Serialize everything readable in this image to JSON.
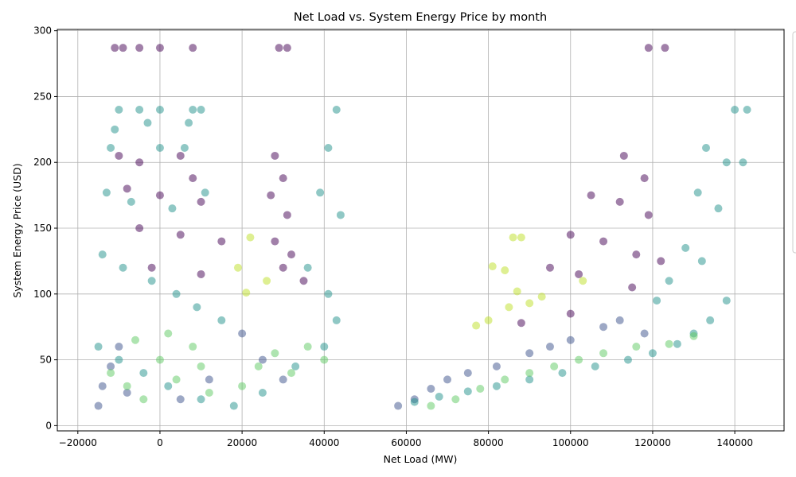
{
  "chart_data": {
    "type": "scatter",
    "title": "Net Load vs. System Energy Price by month",
    "xlabel": "Net Load (MW)",
    "ylabel": "System Energy Price (USD)",
    "xlim": [
      -25000,
      152000
    ],
    "ylim": [
      -4,
      301
    ],
    "x_ticks": [
      -20000,
      0,
      20000,
      40000,
      60000,
      80000,
      100000,
      120000,
      140000
    ],
    "x_tick_labels": [
      "−20000",
      "0",
      "20000",
      "40000",
      "60000",
      "80000",
      "100000",
      "120000",
      "140000"
    ],
    "y_ticks": [
      0,
      50,
      100,
      150,
      200,
      250,
      300
    ],
    "y_tick_labels": [
      "0",
      "50",
      "100",
      "150",
      "200",
      "250",
      "300"
    ],
    "grid": true,
    "legend_position": "right",
    "colormap": "viridis",
    "marker_alpha": 0.5,
    "series": [
      {
        "color": "#440154",
        "points": [
          [
            -11000,
            287
          ],
          [
            -9000,
            287
          ],
          [
            -5000,
            287
          ],
          [
            0,
            287
          ],
          [
            8000,
            287
          ],
          [
            29000,
            287
          ],
          [
            31000,
            287
          ],
          [
            119000,
            287
          ],
          [
            123000,
            287
          ],
          [
            -10000,
            205
          ],
          [
            -5000,
            200
          ],
          [
            5000,
            205
          ],
          [
            8000,
            188
          ],
          [
            28000,
            205
          ],
          [
            30000,
            188
          ],
          [
            113000,
            205
          ],
          [
            118000,
            188
          ],
          [
            -8000,
            180
          ],
          [
            0,
            175
          ],
          [
            10000,
            170
          ],
          [
            27000,
            175
          ],
          [
            31000,
            160
          ],
          [
            105000,
            175
          ],
          [
            112000,
            170
          ],
          [
            119000,
            160
          ],
          [
            -5000,
            150
          ],
          [
            5000,
            145
          ],
          [
            15000,
            140
          ],
          [
            28000,
            140
          ],
          [
            32000,
            130
          ],
          [
            100000,
            145
          ],
          [
            108000,
            140
          ],
          [
            116000,
            130
          ],
          [
            122000,
            125
          ],
          [
            -2000,
            120
          ],
          [
            10000,
            115
          ],
          [
            30000,
            120
          ],
          [
            35000,
            110
          ],
          [
            95000,
            120
          ],
          [
            102000,
            115
          ],
          [
            115000,
            105
          ],
          [
            88000,
            78
          ],
          [
            100000,
            85
          ]
        ]
      },
      {
        "color": "#3b528b",
        "points": [
          [
            -14000,
            30
          ],
          [
            -12000,
            45
          ],
          [
            -10000,
            60
          ],
          [
            -8000,
            25
          ],
          [
            -15000,
            15
          ],
          [
            5000,
            20
          ],
          [
            12000,
            35
          ],
          [
            20000,
            70
          ],
          [
            25000,
            50
          ],
          [
            30000,
            35
          ],
          [
            58000,
            15
          ],
          [
            62000,
            20
          ],
          [
            66000,
            28
          ],
          [
            70000,
            35
          ],
          [
            75000,
            40
          ],
          [
            82000,
            45
          ],
          [
            90000,
            55
          ],
          [
            95000,
            60
          ],
          [
            100000,
            65
          ],
          [
            108000,
            75
          ],
          [
            112000,
            80
          ],
          [
            118000,
            70
          ]
        ]
      },
      {
        "color": "#21918c",
        "points": [
          [
            -10000,
            240
          ],
          [
            -5000,
            240
          ],
          [
            0,
            240
          ],
          [
            8000,
            240
          ],
          [
            10000,
            240
          ],
          [
            -11000,
            225
          ],
          [
            -3000,
            230
          ],
          [
            7000,
            230
          ],
          [
            43000,
            240
          ],
          [
            140000,
            240
          ],
          [
            143000,
            240
          ],
          [
            -12000,
            211
          ],
          [
            0,
            211
          ],
          [
            6000,
            211
          ],
          [
            41000,
            211
          ],
          [
            133000,
            211
          ],
          [
            138000,
            200
          ],
          [
            142000,
            200
          ],
          [
            -13000,
            177
          ],
          [
            -7000,
            170
          ],
          [
            3000,
            165
          ],
          [
            11000,
            177
          ],
          [
            39000,
            177
          ],
          [
            44000,
            160
          ],
          [
            131000,
            177
          ],
          [
            136000,
            165
          ],
          [
            -14000,
            130
          ],
          [
            -9000,
            120
          ],
          [
            -2000,
            110
          ],
          [
            4000,
            100
          ],
          [
            9000,
            90
          ],
          [
            15000,
            80
          ],
          [
            36000,
            120
          ],
          [
            41000,
            100
          ],
          [
            43000,
            80
          ],
          [
            -15000,
            60
          ],
          [
            -10000,
            50
          ],
          [
            -4000,
            40
          ],
          [
            2000,
            30
          ],
          [
            10000,
            20
          ],
          [
            18000,
            15
          ],
          [
            25000,
            25
          ],
          [
            33000,
            45
          ],
          [
            40000,
            60
          ],
          [
            62000,
            18
          ],
          [
            68000,
            22
          ],
          [
            75000,
            26
          ],
          [
            82000,
            30
          ],
          [
            90000,
            35
          ],
          [
            98000,
            40
          ],
          [
            106000,
            45
          ],
          [
            114000,
            50
          ],
          [
            120000,
            55
          ],
          [
            126000,
            62
          ],
          [
            130000,
            70
          ],
          [
            134000,
            80
          ],
          [
            138000,
            95
          ],
          [
            128000,
            135
          ],
          [
            132000,
            125
          ],
          [
            124000,
            110
          ],
          [
            121000,
            95
          ]
        ]
      },
      {
        "color": "#5ec962",
        "points": [
          [
            -12000,
            40
          ],
          [
            -8000,
            30
          ],
          [
            -4000,
            20
          ],
          [
            0,
            50
          ],
          [
            4000,
            35
          ],
          [
            8000,
            60
          ],
          [
            12000,
            25
          ],
          [
            -6000,
            65
          ],
          [
            2000,
            70
          ],
          [
            10000,
            45
          ],
          [
            20000,
            30
          ],
          [
            24000,
            45
          ],
          [
            28000,
            55
          ],
          [
            32000,
            40
          ],
          [
            36000,
            60
          ],
          [
            40000,
            50
          ],
          [
            66000,
            15
          ],
          [
            72000,
            20
          ],
          [
            78000,
            28
          ],
          [
            84000,
            35
          ],
          [
            90000,
            40
          ],
          [
            96000,
            45
          ],
          [
            102000,
            50
          ],
          [
            108000,
            55
          ],
          [
            116000,
            60
          ],
          [
            124000,
            62
          ],
          [
            130000,
            68
          ]
        ]
      },
      {
        "color": "#bddf26",
        "points": [
          [
            22000,
            143
          ],
          [
            19000,
            120
          ],
          [
            21000,
            101
          ],
          [
            26000,
            110
          ],
          [
            81000,
            121
          ],
          [
            86000,
            143
          ],
          [
            88000,
            143
          ],
          [
            84000,
            118
          ],
          [
            87000,
            102
          ],
          [
            93000,
            98
          ],
          [
            90000,
            93
          ],
          [
            85000,
            90
          ],
          [
            103000,
            110
          ],
          [
            77000,
            76
          ],
          [
            80000,
            80
          ]
        ]
      }
    ]
  }
}
